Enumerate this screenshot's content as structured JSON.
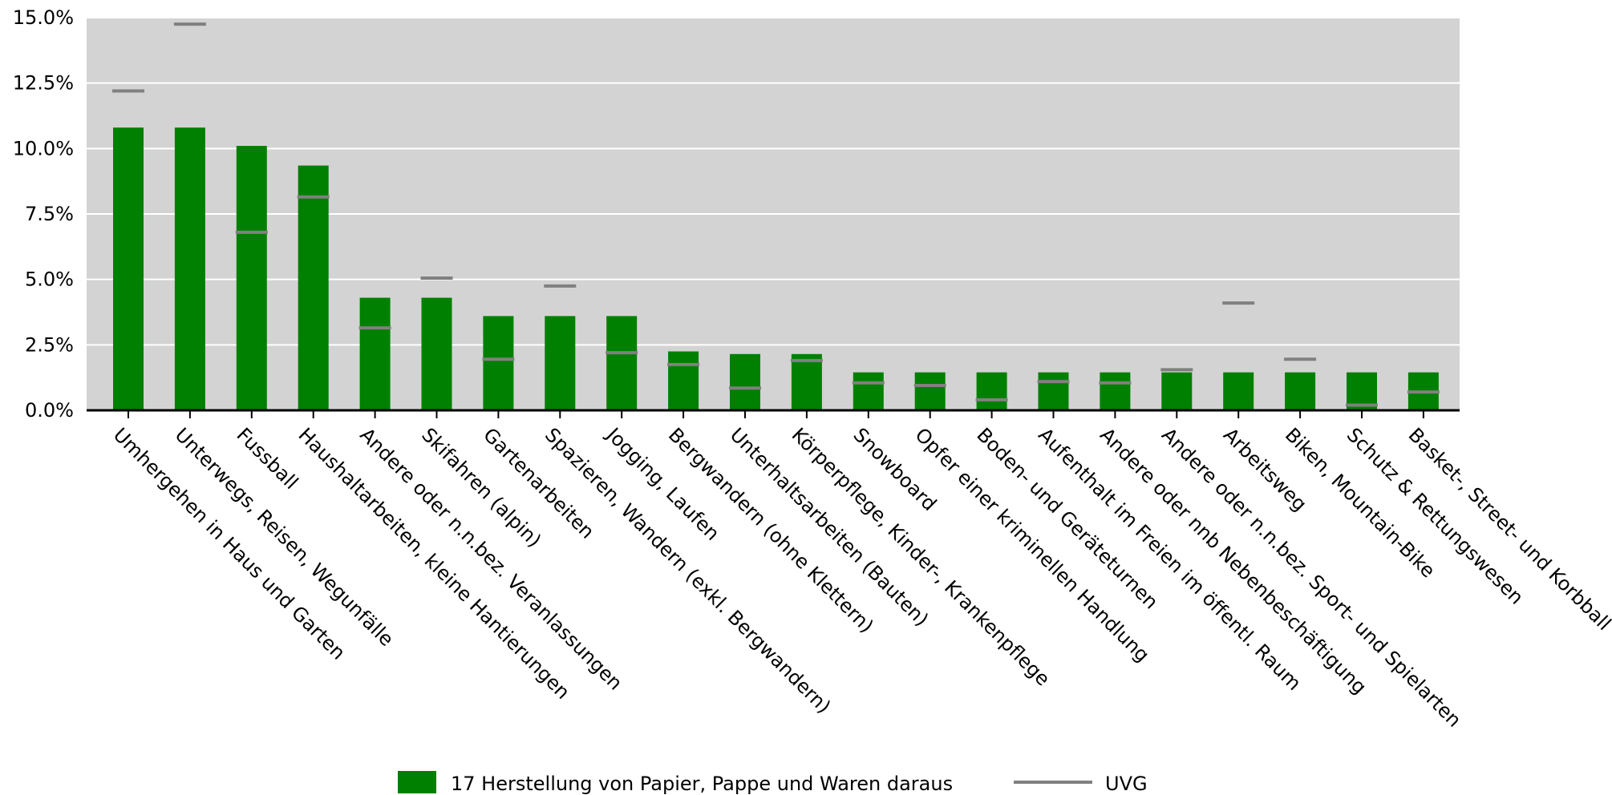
{
  "chart_data": {
    "type": "bar",
    "categories": [
      "Umhergehen in Haus und Garten",
      "Unterwegs, Reisen, Wegunfälle",
      "Fussball",
      "Haushaltarbeiten, kleine Hantierungen",
      "Andere oder n.n.bez. Veranlassungen",
      "Skifahren (alpin)",
      "Gartenarbeiten",
      "Spazieren, Wandern (exkl. Bergwandern)",
      "Jogging, Laufen",
      "Bergwandern (ohne Klettern)",
      "Unterhaltsarbeiten (Bauten)",
      "Körperpflege, Kinder-, Krankenpflege",
      "Snowboard",
      "Opfer einer kriminellen Handlung",
      "Boden- und Geräteturnen",
      "Aufenthalt im Freien im öffentl. Raum",
      "Andere oder nnb Nebenbeschäftigung",
      "Andere oder n.n.bez. Sport- und Spielarten",
      "Arbeitsweg",
      "Biken, Mountain-Bike",
      "Schutz & Rettungswesen",
      "Basket-, Street- und Korbball"
    ],
    "series": [
      {
        "name": "17 Herstellung von Papier, Pappe und Waren daraus",
        "type": "bar",
        "color": "#008000",
        "values": [
          10.8,
          10.8,
          10.1,
          9.35,
          4.3,
          4.3,
          3.6,
          3.6,
          3.6,
          2.25,
          2.15,
          2.15,
          1.45,
          1.45,
          1.45,
          1.45,
          1.45,
          1.45,
          1.45,
          1.45,
          1.45,
          1.45
        ]
      },
      {
        "name": "UVG",
        "type": "marker",
        "color": "#808080",
        "values": [
          12.2,
          14.75,
          6.8,
          8.15,
          3.15,
          5.05,
          1.95,
          4.75,
          2.2,
          1.75,
          0.85,
          1.9,
          1.05,
          0.95,
          0.4,
          1.1,
          1.05,
          1.55,
          4.1,
          1.95,
          0.2,
          0.7
        ]
      }
    ],
    "yticks": [
      "0.0%",
      "2.5%",
      "5.0%",
      "7.5%",
      "10.0%",
      "12.5%",
      "15.0%"
    ],
    "ylim": [
      0,
      15
    ],
    "grid": true,
    "legend_position": "bottom-center",
    "plot_background": "#d3d3d3"
  }
}
